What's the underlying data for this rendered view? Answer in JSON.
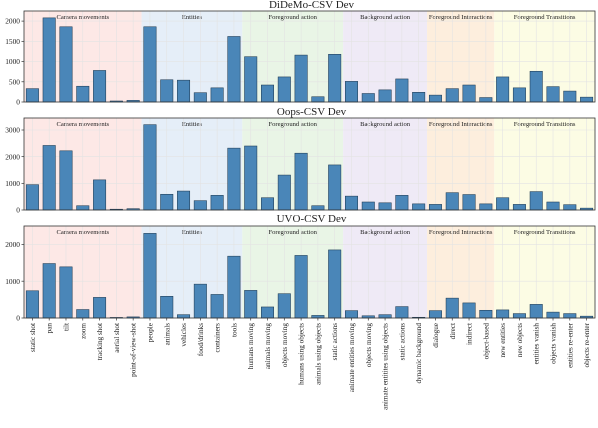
{
  "chart_data": {
    "type": "bar",
    "categories": [
      "static shot",
      "pan",
      "tilt",
      "zoom",
      "tracking shot",
      "aerial shot",
      "point-of-view-shot",
      "people",
      "animals",
      "vehicles",
      "food/drinks",
      "containers",
      "tools",
      "humans moving",
      "animals moving",
      "objects moving",
      "humans using objects",
      "animals using objects",
      "static actions",
      "animate entities moving",
      "objects moving",
      "animate entitites using objects",
      "static actions",
      "dynamic background",
      "dialogue",
      "direct",
      "indirect",
      "object-based",
      "new entities",
      "new objects",
      "entities vanish",
      "objects vanish",
      "entities re-enter",
      "objects re-enter"
    ],
    "groups": [
      {
        "name": "Camera movements",
        "count": 7,
        "color": "#fde8e6"
      },
      {
        "name": "Entities",
        "count": 6,
        "color": "#e5eef8"
      },
      {
        "name": "Foreground action",
        "count": 6,
        "color": "#e9f5e6"
      },
      {
        "name": "Background action",
        "count": 5,
        "color": "#efeaf6"
      },
      {
        "name": "Foreground Interactions",
        "count": 4,
        "color": "#fdeedd"
      },
      {
        "name": "Foreground Transitions",
        "count": 6,
        "color": "#fcfce4"
      }
    ],
    "panels": [
      {
        "title": "DiDeMo-CSV Dev",
        "ylim": [
          0,
          2250
        ],
        "yticks": [
          0,
          500,
          1000,
          1500,
          2000
        ],
        "values": [
          330,
          2080,
          1860,
          390,
          780,
          25,
          40,
          1860,
          550,
          540,
          230,
          350,
          1620,
          1120,
          420,
          620,
          1160,
          130,
          1180,
          510,
          210,
          300,
          570,
          240,
          170,
          330,
          420,
          110,
          620,
          350,
          760,
          380,
          270,
          120
        ]
      },
      {
        "title": "Oops-CSV Dev",
        "ylim": [
          0,
          3450
        ],
        "yticks": [
          0,
          1000,
          2000,
          3000
        ],
        "values": [
          950,
          2420,
          2220,
          160,
          1130,
          30,
          50,
          3200,
          590,
          710,
          350,
          550,
          2320,
          2400,
          460,
          1310,
          2130,
          160,
          1690,
          520,
          300,
          270,
          550,
          230,
          210,
          650,
          580,
          230,
          460,
          210,
          690,
          300,
          200,
          70
        ]
      },
      {
        "title": "UVO-CSV Dev",
        "ylim": [
          0,
          2500
        ],
        "yticks": [
          0,
          1000,
          2000
        ],
        "values": [
          740,
          1480,
          1390,
          230,
          560,
          15,
          30,
          2300,
          590,
          90,
          920,
          640,
          1680,
          750,
          300,
          660,
          1700,
          70,
          1850,
          200,
          60,
          90,
          310,
          20,
          200,
          540,
          410,
          210,
          220,
          120,
          370,
          160,
          120,
          50
        ]
      }
    ],
    "bar_color": "#4a86b8",
    "bar_edge_color": "#1e3a52",
    "grid": true,
    "xlabel": "",
    "ylabel": ""
  }
}
